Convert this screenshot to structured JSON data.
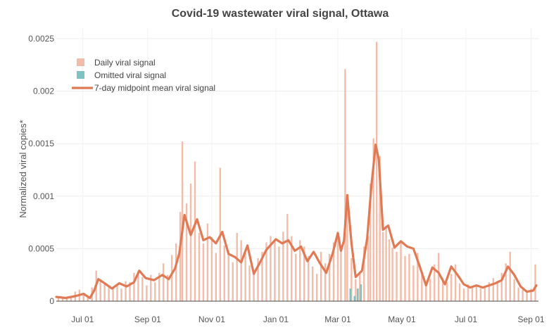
{
  "chart_data": {
    "type": "bar",
    "title": "Covid-19 wastewater viral signal, Ottawa",
    "xlabel": "",
    "ylabel": "Normalized viral copies*",
    "ylim": [
      0,
      0.0026
    ],
    "xlim": [
      "2020-06-06",
      "2021-09-08"
    ],
    "y_ticks": [
      0,
      0.0005,
      0.001,
      0.0015,
      0.002,
      0.0025
    ],
    "y_tick_labels": [
      "0",
      "0.0005",
      "0.001",
      "0.0015",
      "0.002",
      "0.0025"
    ],
    "x_ticks": [
      "2020-07-01",
      "2020-09-01",
      "2020-11-01",
      "2021-01-01",
      "2021-03-01",
      "2021-05-01",
      "2021-07-01",
      "2021-09-01"
    ],
    "x_tick_labels": [
      "Jul 01",
      "Sep 01",
      "Nov 01",
      "Jan 01",
      "Mar 01",
      "May 01",
      "Jul 01",
      "Sep 01"
    ],
    "grid": true,
    "legend_position": "top-left",
    "colors": {
      "daily": "#f2bca8",
      "omitted": "#7fc3c1",
      "mean": "#e07a55"
    },
    "series": [
      {
        "name": "Daily viral signal",
        "kind": "bar",
        "points": [
          [
            "2020-06-08",
            4e-05
          ],
          [
            "2020-06-12",
            3e-05
          ],
          [
            "2020-06-16",
            4e-05
          ],
          [
            "2020-06-20",
            5e-05
          ],
          [
            "2020-06-24",
            9e-05
          ],
          [
            "2020-06-28",
            0.00011
          ],
          [
            "2020-07-02",
            6e-05
          ],
          [
            "2020-07-06",
            5e-05
          ],
          [
            "2020-07-10",
            0.00013
          ],
          [
            "2020-07-14",
            0.00029
          ],
          [
            "2020-07-18",
            0.00021
          ],
          [
            "2020-07-22",
            0.00017
          ],
          [
            "2020-07-26",
            0.00014
          ],
          [
            "2020-07-30",
            0.00013
          ],
          [
            "2020-08-03",
            0.00016
          ],
          [
            "2020-08-07",
            0.00012
          ],
          [
            "2020-08-11",
            0.00019
          ],
          [
            "2020-08-15",
            0.00018
          ],
          [
            "2020-08-19",
            0.00027
          ],
          [
            "2020-08-23",
            0.00029
          ],
          [
            "2020-08-27",
            0.00023
          ],
          [
            "2020-08-31",
            0.00015
          ],
          [
            "2020-09-04",
            0.00025
          ],
          [
            "2020-09-08",
            0.00018
          ],
          [
            "2020-09-12",
            0.00027
          ],
          [
            "2020-09-16",
            0.00036
          ],
          [
            "2020-09-20",
            0.00025
          ],
          [
            "2020-09-24",
            0.00044
          ],
          [
            "2020-09-28",
            0.00055
          ],
          [
            "2020-10-02",
            0.00085
          ],
          [
            "2020-10-04",
            0.00152
          ],
          [
            "2020-10-08",
            0.00093
          ],
          [
            "2020-10-12",
            0.00112
          ],
          [
            "2020-10-16",
            0.00133
          ],
          [
            "2020-10-20",
            0.00065
          ],
          [
            "2020-10-24",
            0.00055
          ],
          [
            "2020-10-28",
            0.00074
          ],
          [
            "2020-11-01",
            0.00061
          ],
          [
            "2020-11-05",
            0.00046
          ],
          [
            "2020-11-09",
            0.00127
          ],
          [
            "2020-11-13",
            0.00053
          ],
          [
            "2020-11-17",
            0.00048
          ],
          [
            "2020-11-21",
            0.00037
          ],
          [
            "2020-11-25",
            0.00065
          ],
          [
            "2020-11-29",
            0.00058
          ],
          [
            "2020-12-03",
            0.00046
          ],
          [
            "2020-12-07",
            0.00034
          ],
          [
            "2020-12-11",
            0.00028
          ],
          [
            "2020-12-15",
            0.00041
          ],
          [
            "2020-12-19",
            0.00047
          ],
          [
            "2020-12-23",
            0.00056
          ],
          [
            "2020-12-27",
            0.00062
          ],
          [
            "2020-12-31",
            0.00058
          ],
          [
            "2021-01-04",
            0.00052
          ],
          [
            "2021-01-08",
            0.00066
          ],
          [
            "2021-01-12",
            0.00083
          ],
          [
            "2021-01-16",
            0.00062
          ],
          [
            "2021-01-20",
            0.00045
          ],
          [
            "2021-01-24",
            0.00058
          ],
          [
            "2021-01-28",
            0.00052
          ],
          [
            "2021-02-01",
            0.00043
          ],
          [
            "2021-02-05",
            0.00033
          ],
          [
            "2021-02-09",
            0.00026
          ],
          [
            "2021-02-13",
            0.00047
          ],
          [
            "2021-02-17",
            0.00036
          ],
          [
            "2021-02-21",
            0.00045
          ],
          [
            "2021-02-25",
            0.00056
          ],
          [
            "2021-03-01",
            0.00065
          ],
          [
            "2021-03-04",
            0.00048
          ],
          [
            "2021-03-08",
            0.00221
          ],
          [
            "2021-03-10",
            0.00102
          ],
          [
            "2021-03-14",
            0.00041
          ],
          [
            "2021-03-18",
            0.00021
          ],
          [
            "2021-03-22",
            0.00028
          ],
          [
            "2021-03-26",
            0.00052
          ],
          [
            "2021-03-30",
            0.00062
          ],
          [
            "2021-04-01",
            0.00112
          ],
          [
            "2021-04-04",
            0.00155
          ],
          [
            "2021-04-07",
            0.00247
          ],
          [
            "2021-04-10",
            0.00138
          ],
          [
            "2021-04-13",
            0.00066
          ],
          [
            "2021-04-16",
            0.00072
          ],
          [
            "2021-04-19",
            0.00059
          ],
          [
            "2021-04-22",
            0.00051
          ],
          [
            "2021-04-26",
            0.00047
          ],
          [
            "2021-04-30",
            0.00058
          ],
          [
            "2021-05-04",
            0.00043
          ],
          [
            "2021-05-08",
            0.00045
          ],
          [
            "2021-05-12",
            0.00034
          ],
          [
            "2021-05-16",
            0.00046
          ],
          [
            "2021-05-20",
            0.00025
          ],
          [
            "2021-05-24",
            0.00016
          ],
          [
            "2021-05-28",
            0.00021
          ],
          [
            "2021-06-01",
            0.00035
          ],
          [
            "2021-06-05",
            0.00046
          ],
          [
            "2021-06-09",
            0.00022
          ],
          [
            "2021-06-13",
            0.00018
          ],
          [
            "2021-06-17",
            0.00026
          ],
          [
            "2021-06-21",
            0.00035
          ],
          [
            "2021-06-25",
            0.00017
          ],
          [
            "2021-06-29",
            0.00012
          ],
          [
            "2021-07-03",
            0.00016
          ],
          [
            "2021-07-07",
            0.00013
          ],
          [
            "2021-07-11",
            0.00015
          ],
          [
            "2021-07-15",
            0.00012
          ],
          [
            "2021-07-19",
            0.00014
          ],
          [
            "2021-07-23",
            0.00018
          ],
          [
            "2021-07-27",
            0.00022
          ],
          [
            "2021-07-31",
            0.00019
          ],
          [
            "2021-08-04",
            0.00027
          ],
          [
            "2021-08-08",
            0.00036
          ],
          [
            "2021-08-12",
            0.00047
          ],
          [
            "2021-08-16",
            0.00021
          ],
          [
            "2021-08-20",
            0.00013
          ],
          [
            "2021-08-24",
            0.00011
          ],
          [
            "2021-08-28",
            9e-05
          ],
          [
            "2021-09-01",
            0.00012
          ],
          [
            "2021-09-05",
            0.00035
          ]
        ]
      },
      {
        "name": "Omitted viral signal",
        "kind": "bar",
        "points": [
          [
            "2021-03-13",
            0.00012
          ],
          [
            "2021-03-17",
            5e-05
          ],
          [
            "2021-03-20",
            0.00012
          ],
          [
            "2021-03-23",
            0.00016
          ]
        ]
      },
      {
        "name": "7-day midpoint mean viral signal",
        "kind": "line",
        "points": [
          [
            "2020-06-06",
            4e-05
          ],
          [
            "2020-06-15",
            3e-05
          ],
          [
            "2020-06-25",
            5e-05
          ],
          [
            "2020-07-02",
            7e-05
          ],
          [
            "2020-07-08",
            3e-05
          ],
          [
            "2020-07-12",
            0.0001
          ],
          [
            "2020-07-16",
            0.00021
          ],
          [
            "2020-07-22",
            0.00017
          ],
          [
            "2020-07-29",
            0.00012
          ],
          [
            "2020-08-05",
            0.00017
          ],
          [
            "2020-08-12",
            0.00014
          ],
          [
            "2020-08-19",
            0.00018
          ],
          [
            "2020-08-24",
            0.00029
          ],
          [
            "2020-08-30",
            0.00022
          ],
          [
            "2020-09-07",
            0.0002
          ],
          [
            "2020-09-15",
            0.00025
          ],
          [
            "2020-09-21",
            0.00021
          ],
          [
            "2020-09-27",
            0.00031
          ],
          [
            "2020-10-01",
            0.00045
          ],
          [
            "2020-10-06",
            0.00082
          ],
          [
            "2020-10-12",
            0.00063
          ],
          [
            "2020-10-18",
            0.00078
          ],
          [
            "2020-10-24",
            0.00058
          ],
          [
            "2020-10-30",
            0.00061
          ],
          [
            "2020-11-05",
            0.00055
          ],
          [
            "2020-11-11",
            0.00066
          ],
          [
            "2020-11-17",
            0.00045
          ],
          [
            "2020-11-23",
            0.00042
          ],
          [
            "2020-11-29",
            0.00037
          ],
          [
            "2020-12-05",
            0.00053
          ],
          [
            "2020-12-11",
            0.00026
          ],
          [
            "2020-12-17",
            0.00037
          ],
          [
            "2020-12-23",
            0.00049
          ],
          [
            "2021-01-01",
            0.00059
          ],
          [
            "2021-01-07",
            0.00055
          ],
          [
            "2021-01-13",
            0.00058
          ],
          [
            "2021-01-19",
            0.00048
          ],
          [
            "2021-01-25",
            0.00052
          ],
          [
            "2021-01-31",
            0.00038
          ],
          [
            "2021-02-06",
            0.00047
          ],
          [
            "2021-02-12",
            0.00036
          ],
          [
            "2021-02-18",
            0.00027
          ],
          [
            "2021-02-24",
            0.00045
          ],
          [
            "2021-03-01",
            0.00065
          ],
          [
            "2021-03-04",
            0.00048
          ],
          [
            "2021-03-07",
            0.00058
          ],
          [
            "2021-03-10",
            0.00101
          ],
          [
            "2021-03-14",
            0.00055
          ],
          [
            "2021-03-18",
            0.00023
          ],
          [
            "2021-03-24",
            0.00029
          ],
          [
            "2021-03-29",
            0.0006
          ],
          [
            "2021-04-02",
            0.0011
          ],
          [
            "2021-04-06",
            0.00149
          ],
          [
            "2021-04-09",
            0.00135
          ],
          [
            "2021-04-13",
            0.00068
          ],
          [
            "2021-04-18",
            0.00072
          ],
          [
            "2021-04-24",
            0.00051
          ],
          [
            "2021-04-30",
            0.00057
          ],
          [
            "2021-05-06",
            0.00052
          ],
          [
            "2021-05-12",
            0.0005
          ],
          [
            "2021-05-18",
            0.00033
          ],
          [
            "2021-05-24",
            0.00015
          ],
          [
            "2021-05-30",
            0.00032
          ],
          [
            "2021-06-05",
            0.00027
          ],
          [
            "2021-06-11",
            0.00016
          ],
          [
            "2021-06-17",
            0.00033
          ],
          [
            "2021-06-23",
            0.00025
          ],
          [
            "2021-06-29",
            0.00016
          ],
          [
            "2021-07-05",
            0.00013
          ],
          [
            "2021-07-11",
            0.00015
          ],
          [
            "2021-07-17",
            0.00013
          ],
          [
            "2021-07-23",
            0.00015
          ],
          [
            "2021-07-29",
            0.00017
          ],
          [
            "2021-08-04",
            0.0002
          ],
          [
            "2021-08-10",
            0.00033
          ],
          [
            "2021-08-16",
            0.00025
          ],
          [
            "2021-08-22",
            0.00014
          ],
          [
            "2021-08-28",
            9e-05
          ],
          [
            "2021-09-03",
            0.0001
          ],
          [
            "2021-09-06",
            0.00015
          ]
        ]
      }
    ]
  }
}
